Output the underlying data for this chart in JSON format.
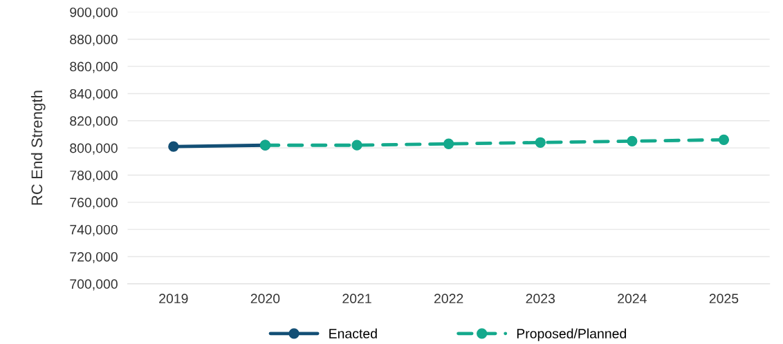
{
  "chart_data": {
    "type": "line",
    "ylabel": "RC End Strength",
    "categories": [
      "2019",
      "2020",
      "2021",
      "2022",
      "2023",
      "2024",
      "2025"
    ],
    "series": [
      {
        "name": "Enacted",
        "color": "#134f75",
        "values": [
          801000,
          802000,
          null,
          null,
          null,
          null,
          null
        ],
        "line_style": "solid"
      },
      {
        "name": "Proposed/Planned",
        "color": "#14a98c",
        "values": [
          null,
          802000,
          802000,
          803000,
          804000,
          805000,
          806000
        ],
        "line_style": "dashed"
      }
    ],
    "ylim": [
      700000,
      900000
    ],
    "yticks": [
      {
        "value": 700000,
        "label": "700,000"
      },
      {
        "value": 720000,
        "label": "720,000"
      },
      {
        "value": 740000,
        "label": "740,000"
      },
      {
        "value": 760000,
        "label": "760,000"
      },
      {
        "value": 780000,
        "label": "780,000"
      },
      {
        "value": 800000,
        "label": "800,000"
      },
      {
        "value": 820000,
        "label": "820,000"
      },
      {
        "value": 840000,
        "label": "840,000"
      },
      {
        "value": 860000,
        "label": "860,000"
      },
      {
        "value": 880000,
        "label": "880,000"
      },
      {
        "value": 900000,
        "label": "900,000"
      }
    ],
    "grid": "y",
    "legend": "bottom",
    "marker": "circle"
  }
}
